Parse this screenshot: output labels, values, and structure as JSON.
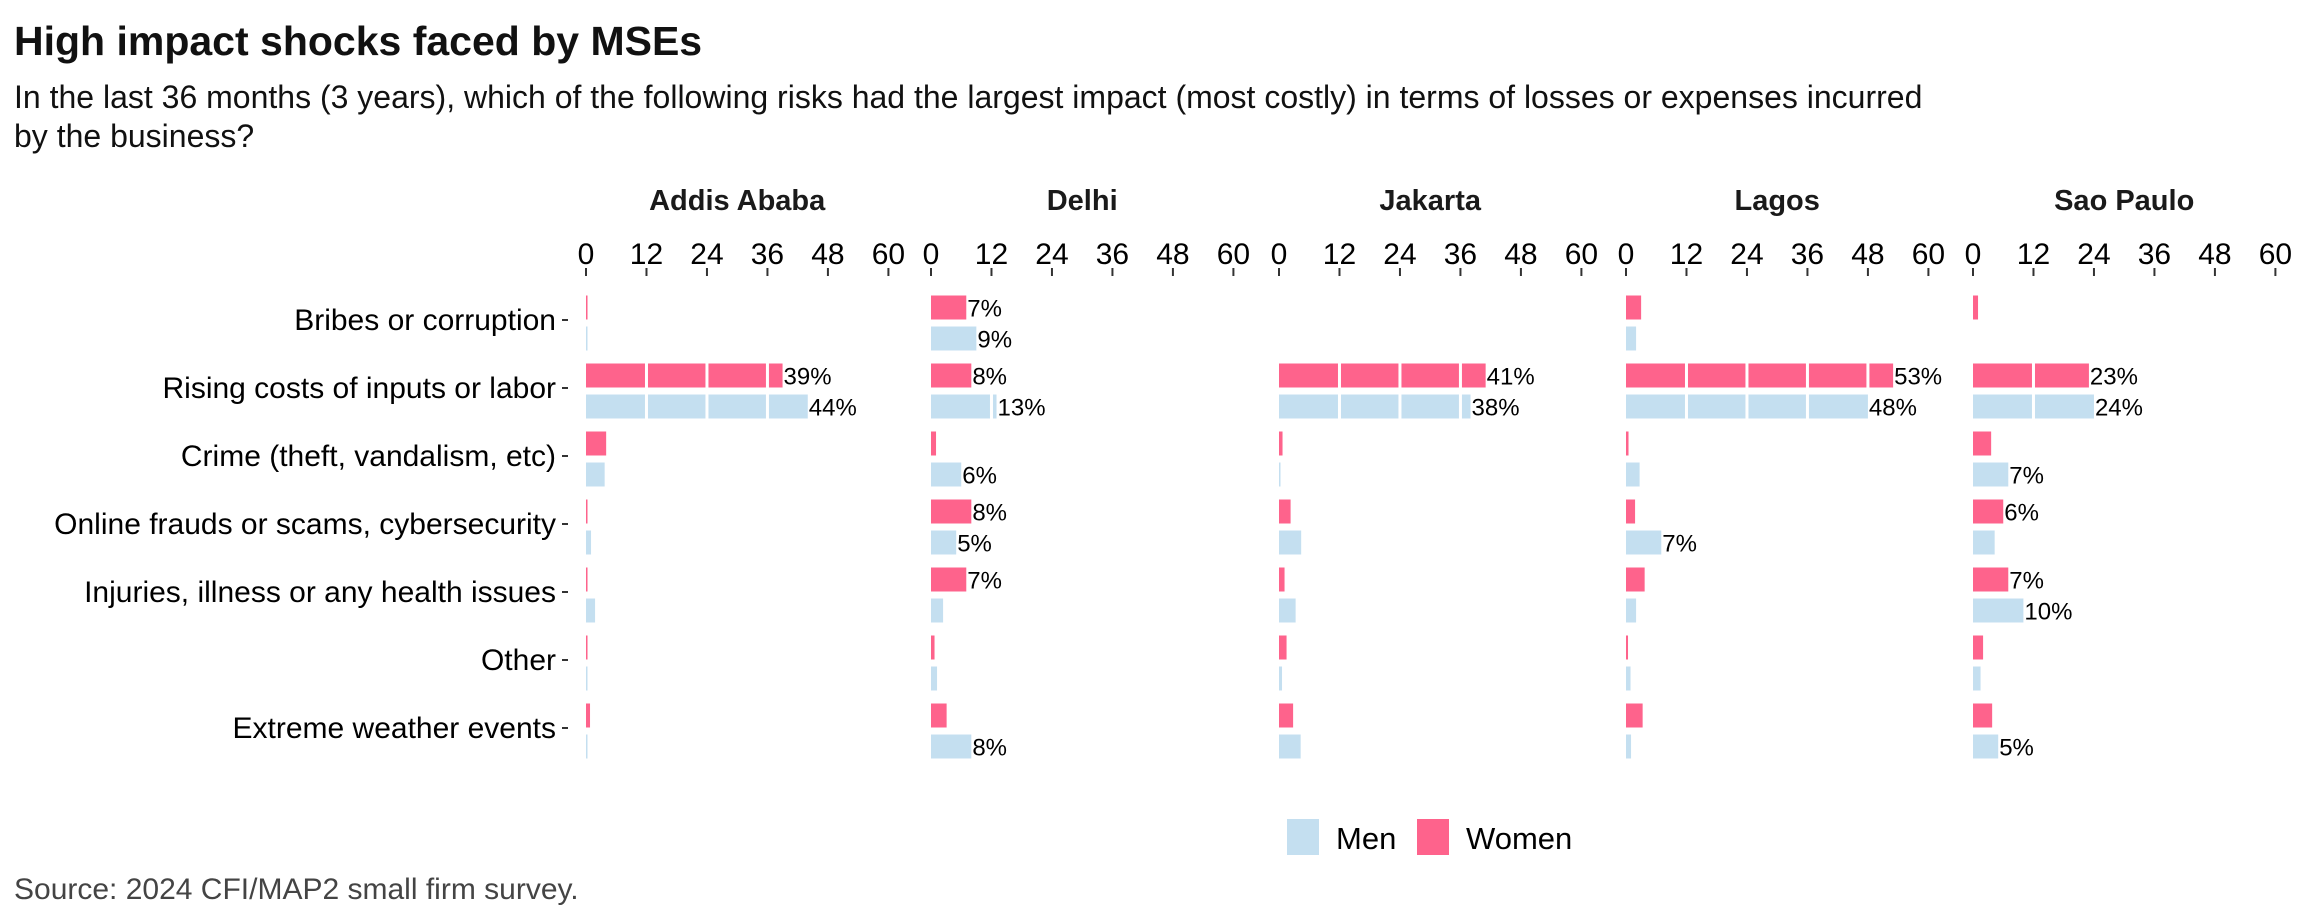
{
  "title": "High impact shocks faced by MSEs",
  "subtitle": "In the last 36 months (3 years), which of the following risks had the largest impact (most costly) in terms of losses or expenses incurred by the business?",
  "source": "Source: 2024 CFI/MAP2 small firm survey.",
  "colors": {
    "men": "#c4dff0",
    "women": "#fe638c"
  },
  "chart_data": {
    "type": "bar",
    "orientation": "horizontal",
    "faceted": true,
    "title": "High impact shocks faced by MSEs",
    "subtitle": "In the last 36 months (3 years), which of the following risks had the largest impact (most costly) in terms of losses or expenses incurred by the business?",
    "xlabel": "",
    "ylabel": "",
    "xlim": [
      0,
      60
    ],
    "xticks": [
      0,
      12,
      24,
      36,
      48,
      60
    ],
    "grid": false,
    "legend": {
      "position": "bottom",
      "entries": [
        "Men",
        "Women"
      ]
    },
    "categories": [
      "Bribes or corruption",
      "Rising costs of inputs or labor",
      "Crime (theft, vandalism, etc)",
      "Online frauds or scams, cybersecurity",
      "Injuries, illness or any health issues",
      "Other",
      "Extreme weather events"
    ],
    "label_threshold": 5,
    "facets": [
      {
        "name": "Addis Ababa",
        "series": [
          {
            "name": "Women",
            "values": [
              0.3,
              39,
              4,
              0.1,
              0.3,
              0.3,
              0.8
            ]
          },
          {
            "name": "Men",
            "values": [
              0.1,
              44,
              3.7,
              1,
              1.8,
              0.1,
              0.2
            ]
          }
        ]
      },
      {
        "name": "Delhi",
        "series": [
          {
            "name": "Women",
            "values": [
              7,
              8,
              1,
              8,
              7,
              0.7,
              3.1
            ]
          },
          {
            "name": "Men",
            "values": [
              9,
              13,
              6,
              5,
              2.4,
              1.2,
              8
            ]
          }
        ]
      },
      {
        "name": "Jakarta",
        "series": [
          {
            "name": "Women",
            "values": [
              0,
              41,
              0.7,
              2.3,
              1.1,
              1.5,
              2.8
            ]
          },
          {
            "name": "Men",
            "values": [
              0,
              38,
              0.3,
              4.4,
              3.3,
              0.6,
              4.3
            ]
          }
        ]
      },
      {
        "name": "Lagos",
        "series": [
          {
            "name": "Women",
            "values": [
              3,
              53,
              0.5,
              1.8,
              3.7,
              0.4,
              3.3
            ]
          },
          {
            "name": "Men",
            "values": [
              2,
              48,
              2.7,
              7,
              2,
              0.9,
              1
            ]
          }
        ]
      },
      {
        "name": "Sao Paulo",
        "series": [
          {
            "name": "Women",
            "values": [
              1,
              23,
              3.6,
              6,
              7,
              2,
              3.8
            ]
          },
          {
            "name": "Men",
            "values": [
              0,
              24,
              7,
              4.3,
              10,
              1.5,
              5
            ]
          }
        ]
      }
    ]
  }
}
